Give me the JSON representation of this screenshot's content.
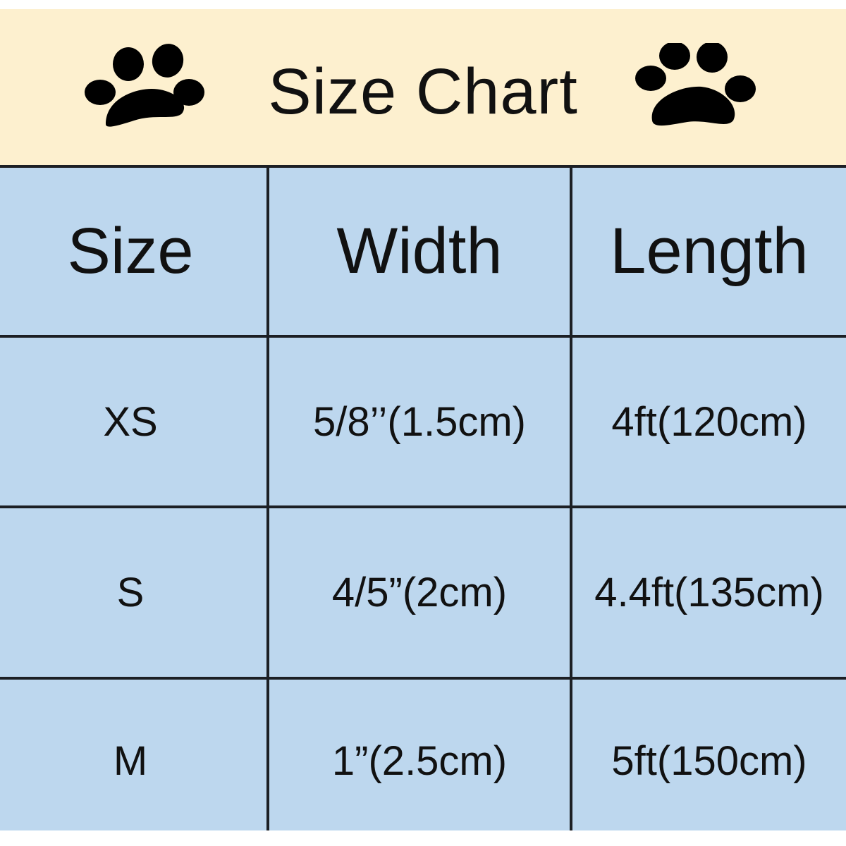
{
  "banner": {
    "title": "Size Chart",
    "icons": [
      "paw-print-icon",
      "paw-print-icon"
    ]
  },
  "colors": {
    "banner": "#fdf0cf",
    "table": "#bdd7ee",
    "lines": "#1c1f24"
  },
  "table": {
    "headers": [
      "Size",
      "Width",
      "Length"
    ],
    "rows": [
      [
        "XS",
        "5/8’’(1.5cm)",
        "4ft(120cm)"
      ],
      [
        "S",
        "4/5”(2cm)",
        "4.4ft(135cm)"
      ],
      [
        "M",
        "1”(2.5cm)",
        "5ft(150cm)"
      ]
    ]
  }
}
